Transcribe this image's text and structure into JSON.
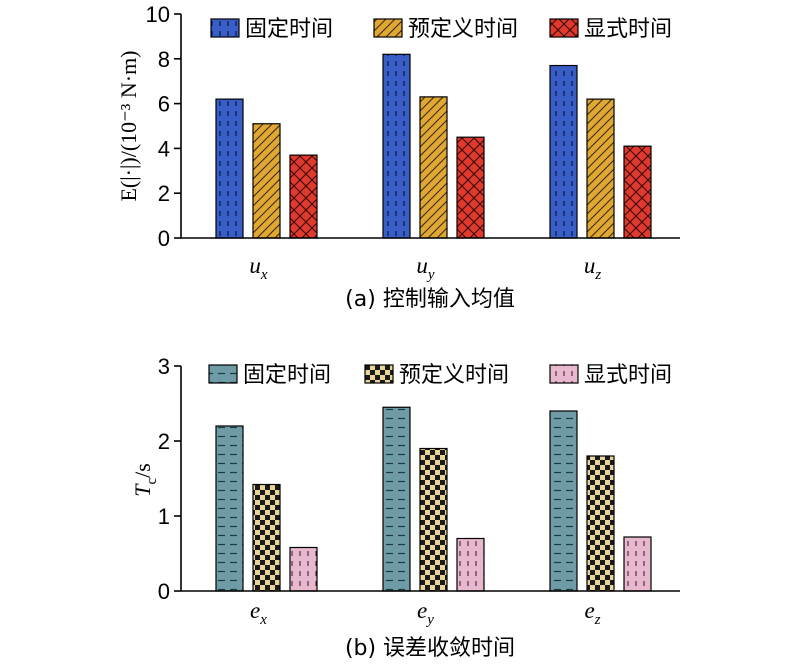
{
  "chart_data": [
    {
      "type": "bar",
      "panel": "a",
      "categories": [
        "u",
        "u",
        "u"
      ],
      "category_subscripts": [
        "x",
        "y",
        "z"
      ],
      "series": [
        {
          "name": "固定时间",
          "values": [
            6.2,
            8.2,
            7.7
          ],
          "color": "#3a5ec8",
          "pattern": "vertical-dashes"
        },
        {
          "name": "预定义时间",
          "values": [
            5.1,
            6.3,
            6.2
          ],
          "color": "#e0a832",
          "pattern": "diagonal-lines"
        },
        {
          "name": "显式时间",
          "values": [
            3.7,
            4.5,
            4.1
          ],
          "color": "#e03a2e",
          "pattern": "crosshatch"
        }
      ],
      "ylabel": "E(|·|)/(10⁻³ N·m)",
      "ylim": [
        0,
        10
      ],
      "yticks": [
        "0",
        "2",
        "4",
        "6",
        "8",
        "10"
      ],
      "caption": "(a) 控制输入均值",
      "legend_position": "top"
    },
    {
      "type": "bar",
      "panel": "b",
      "categories": [
        "e",
        "e",
        "e"
      ],
      "category_subscripts": [
        "x",
        "y",
        "z"
      ],
      "series": [
        {
          "name": "固定时间",
          "values": [
            2.2,
            2.45,
            2.4
          ],
          "color": "#6e9ba6",
          "pattern": "horizontal-dashes"
        },
        {
          "name": "预定义时间",
          "values": [
            1.42,
            1.9,
            1.8
          ],
          "color": "#e9d49a",
          "pattern": "checkerboard"
        },
        {
          "name": "显式时间",
          "values": [
            0.58,
            0.7,
            0.72
          ],
          "color": "#e8b8cf",
          "pattern": "vertical-dashes"
        }
      ],
      "ylabel_main": "T",
      "ylabel_sub": "c",
      "ylabel_unit": "/s",
      "ylim": [
        0,
        3
      ],
      "yticks": [
        "0",
        "1",
        "2",
        "3"
      ],
      "caption": "(b) 误差收敛时间",
      "legend_position": "top"
    }
  ]
}
